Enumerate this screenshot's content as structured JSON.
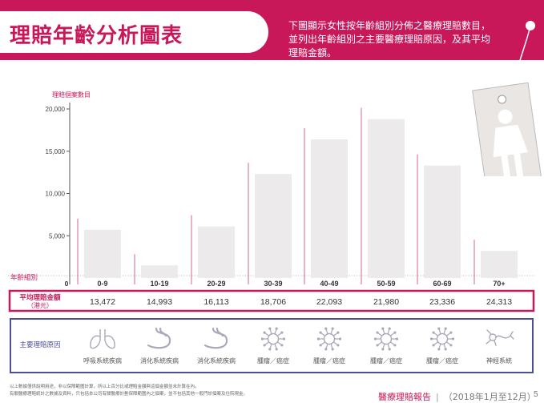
{
  "header": {
    "title": "理賠年齡分析圖表",
    "description": "下圖顯示女性按年齡組別分佈之醫療理賠數目，並列出年齡組別之主要醫療理賠原因，及其平均理賠金額。"
  },
  "chart_data": {
    "type": "bar",
    "title": "",
    "ylabel": "理賠個案數目",
    "xlabel": "年齡組別",
    "ylim": [
      0,
      20000
    ],
    "yticks": [
      5000,
      10000,
      15000,
      20000
    ],
    "ytick_labels": [
      "5,000",
      "10,000",
      "15,000",
      "20,000"
    ],
    "origin_label": "0",
    "categories": [
      "0-9",
      "10-19",
      "20-29",
      "30-39",
      "40-49",
      "50-59",
      "60-69",
      "70+"
    ],
    "values": [
      5700,
      1500,
      6100,
      12300,
      16400,
      18800,
      13300,
      3200
    ],
    "grid": false,
    "bar_color": "#eceaea"
  },
  "avg_claim": {
    "label_line1": "平均理賠金額",
    "label_line2": "（港元）",
    "values": [
      "13,472",
      "14,993",
      "16,113",
      "18,706",
      "22,093",
      "21,980",
      "23,336",
      "24,313"
    ]
  },
  "main_cause": {
    "label": "主要理賠原因",
    "causes": [
      "呼吸系統疾病",
      "消化系統疾病",
      "消化系統疾病",
      "腫瘤／癌症",
      "腫瘤／癌症",
      "腫瘤／癌症",
      "腫瘤／癌症",
      "神經系統"
    ],
    "icons": [
      "lungs-icon",
      "stomach-icon",
      "stomach-icon",
      "tumor-cell-icon",
      "tumor-cell-icon",
      "tumor-cell-icon",
      "tumor-cell-icon",
      "neuron-icon"
    ]
  },
  "colors": {
    "accent": "#c8185a",
    "navy_box": "#4a4f96",
    "bar": "#eceaea",
    "icon": "#a9a9b9"
  },
  "footnotes": [
    "以上數據僅供說明用途，非以保障範圍計算，所以上百分比或理賠金額與這個金額並未計算在內。",
    "有關醫療理賠統計之數據及資料，只包括本公司有關醫療計劃保障範圍內之個案，並不包括其他一般門診個案及住院現金。"
  ],
  "footer": {
    "report_title": "醫療理賠報告",
    "period": "（2018年1月至12月）",
    "page_number": "5"
  }
}
